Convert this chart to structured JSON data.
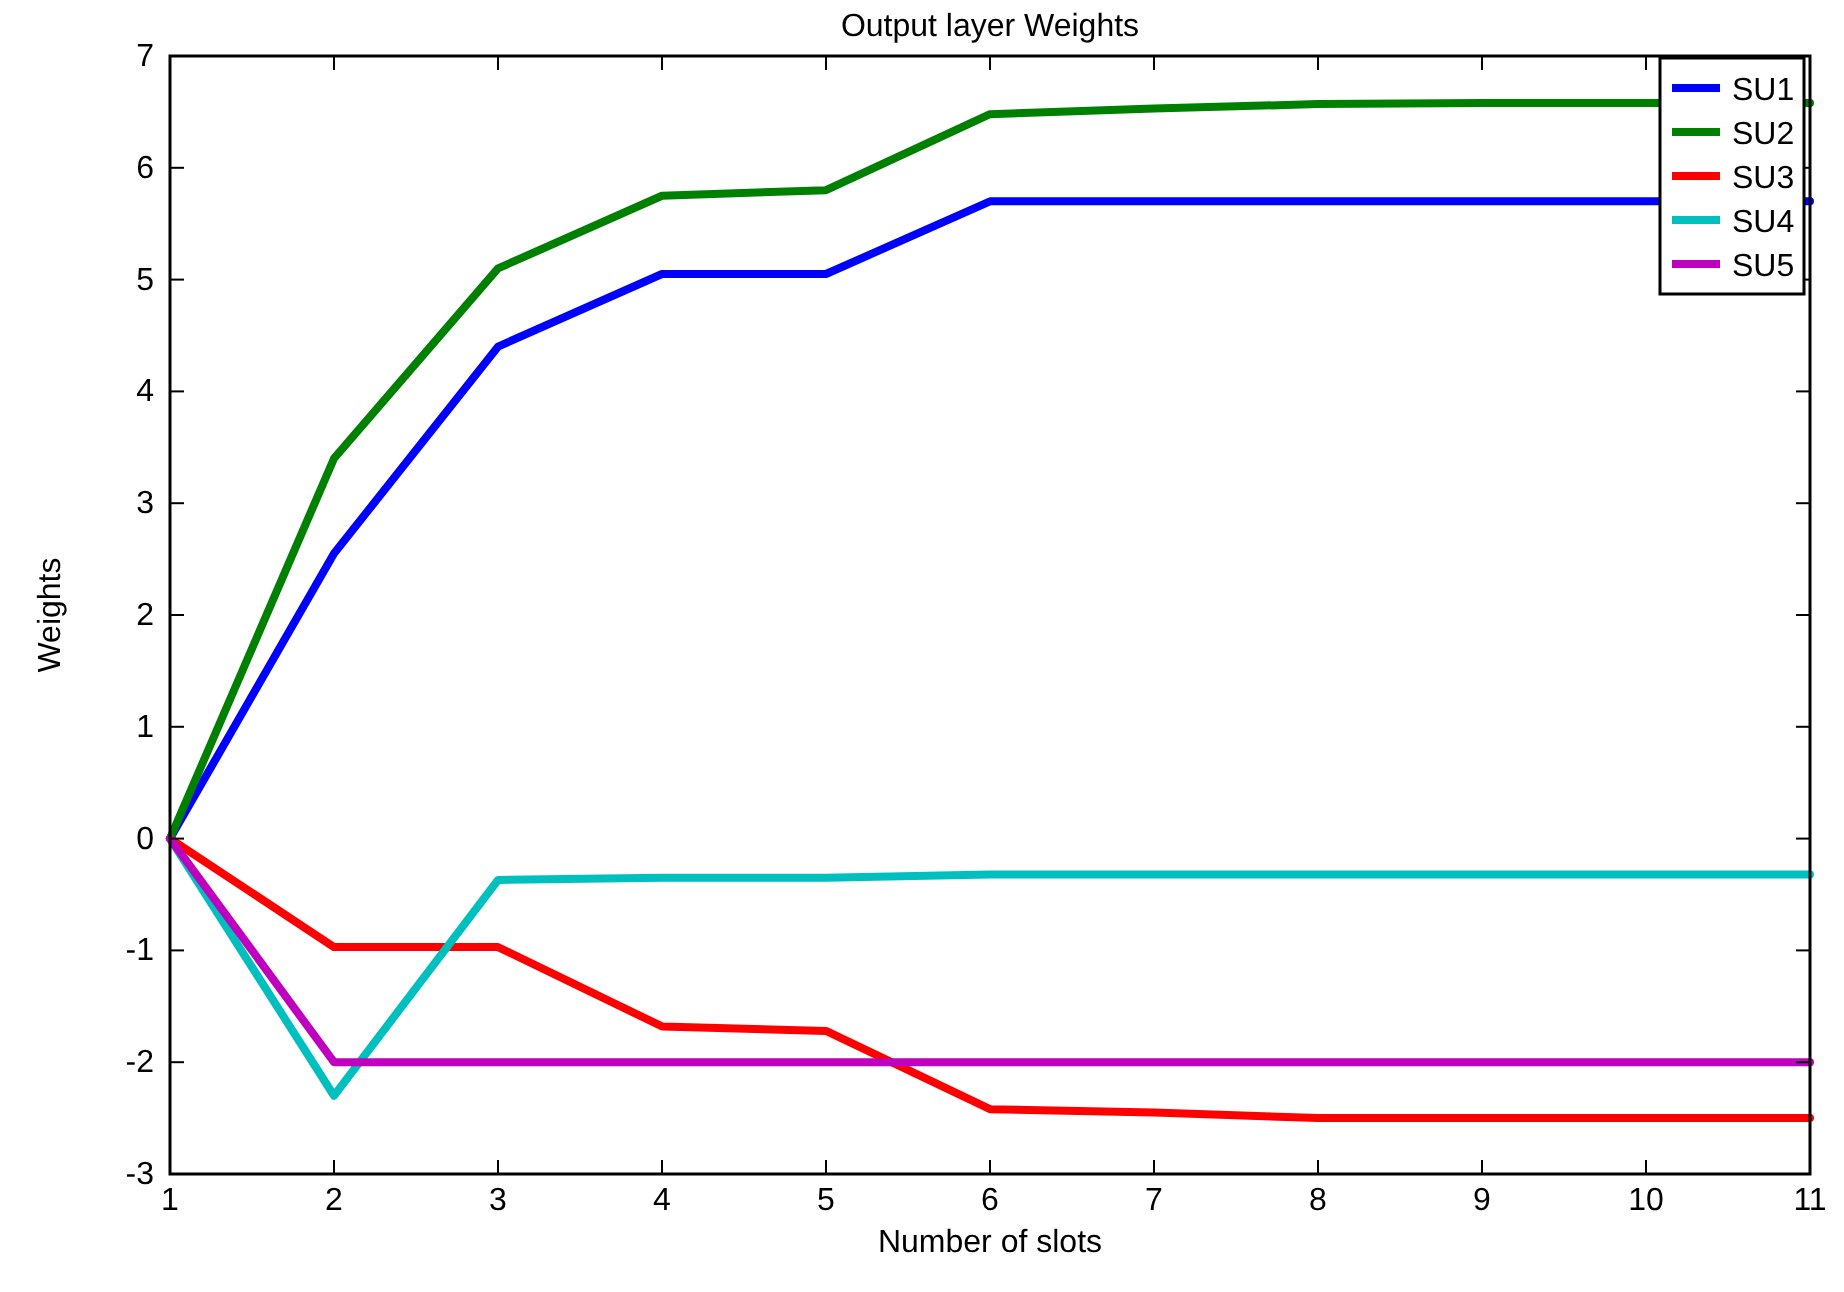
{
  "chart_data": {
    "type": "line",
    "title": "Output layer  Weights",
    "xlabel": "Number of slots",
    "ylabel": "Weights",
    "x": [
      1,
      2,
      3,
      4,
      5,
      6,
      7,
      8,
      9,
      10,
      11
    ],
    "series": [
      {
        "name": "SU1",
        "color": "#0000ff",
        "values": [
          0,
          2.55,
          4.4,
          5.05,
          5.05,
          5.7,
          5.7,
          5.7,
          5.7,
          5.7,
          5.7
        ]
      },
      {
        "name": "SU2",
        "color": "#008000",
        "values": [
          0,
          3.4,
          5.1,
          5.75,
          5.8,
          6.48,
          6.53,
          6.57,
          6.58,
          6.58,
          6.58
        ]
      },
      {
        "name": "SU3",
        "color": "#ff0000",
        "values": [
          0,
          -0.97,
          -0.97,
          -1.68,
          -1.72,
          -2.42,
          -2.45,
          -2.5,
          -2.5,
          -2.5,
          -2.5
        ]
      },
      {
        "name": "SU4",
        "color": "#00bfbf",
        "values": [
          0,
          -2.3,
          -0.37,
          -0.35,
          -0.35,
          -0.32,
          -0.32,
          -0.32,
          -0.32,
          -0.32,
          -0.32
        ]
      },
      {
        "name": "SU5",
        "color": "#bf00bf",
        "values": [
          0,
          -2,
          -2,
          -2,
          -2,
          -2,
          -2,
          -2,
          -2,
          -2,
          -2
        ]
      }
    ],
    "xlim": [
      1,
      11
    ],
    "xticks": [
      1,
      2,
      3,
      4,
      5,
      6,
      7,
      8,
      9,
      10,
      11
    ],
    "ylim": [
      -3,
      7
    ],
    "yticks": [
      -3,
      -2,
      -1,
      0,
      1,
      2,
      3,
      4,
      5,
      6,
      7
    ],
    "grid": false,
    "legend": "top right",
    "marker": "none",
    "line_style": "solid"
  }
}
